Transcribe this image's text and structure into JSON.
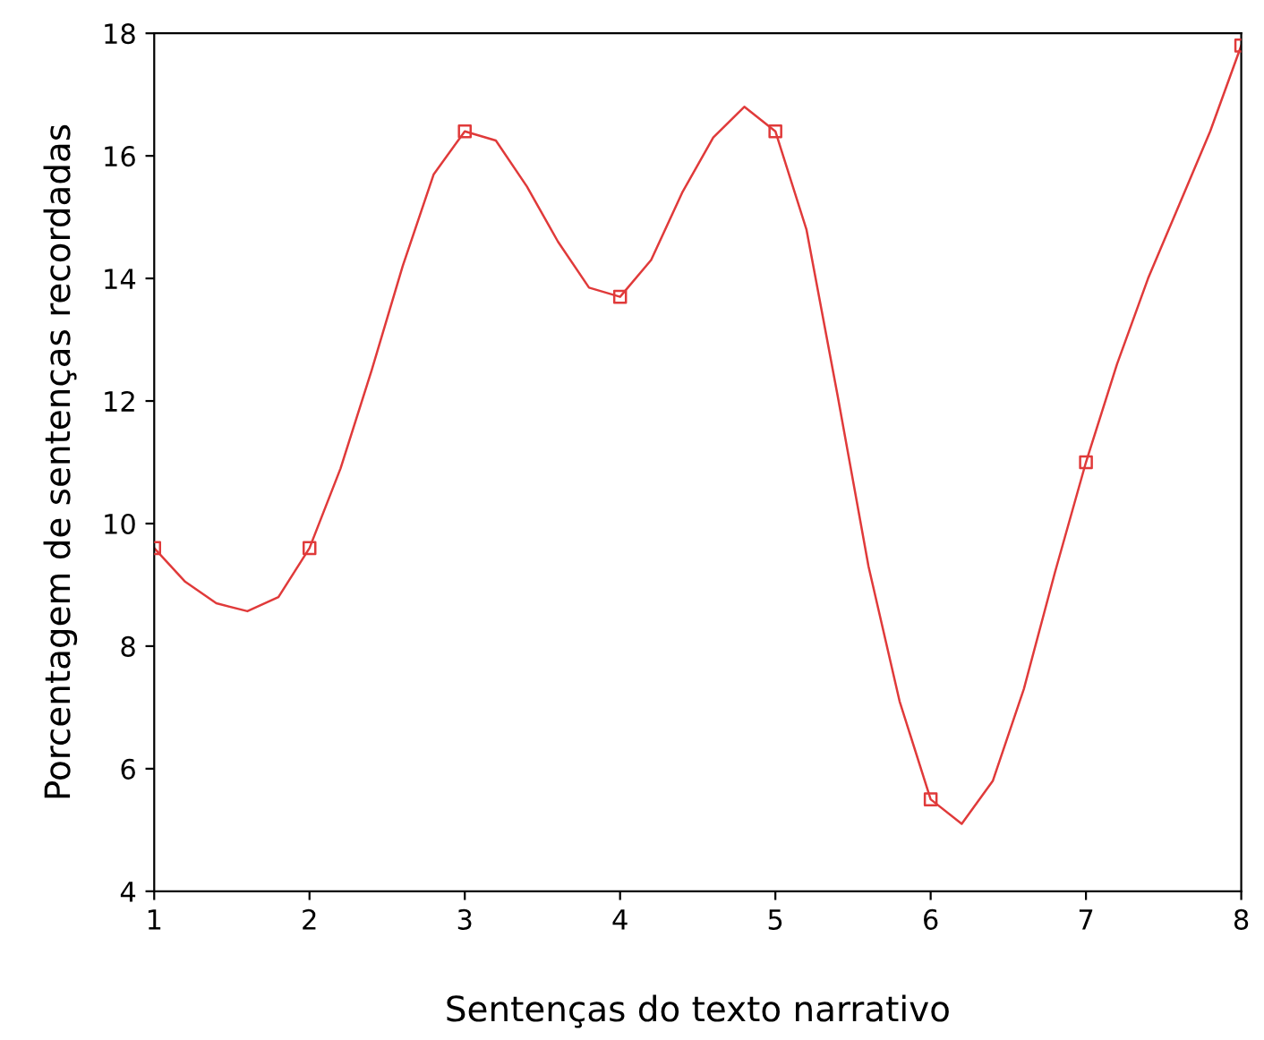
{
  "chart_data": {
    "type": "line",
    "xlabel": "Sentenças do texto narrativo",
    "ylabel": "Porcentagem de sentenças recordadas",
    "series": [
      {
        "color": "#e03a3a",
        "marker": "none",
        "x": [
          1,
          1.2,
          1.4,
          1.6,
          1.8,
          2,
          2.2,
          2.4,
          2.6,
          2.8,
          3,
          3.2,
          3.4,
          3.6,
          3.8,
          4,
          4.2,
          4.4,
          4.6,
          4.8,
          5,
          5.2,
          5.4,
          5.6,
          5.8,
          6,
          6.2,
          6.4,
          6.6,
          6.8,
          7,
          7.2,
          7.4,
          7.6,
          7.8,
          8
        ],
        "values": [
          9.6,
          9.05,
          8.7,
          8.57,
          8.8,
          9.6,
          10.9,
          12.5,
          14.2,
          15.7,
          16.4,
          16.25,
          15.5,
          14.6,
          13.85,
          13.7,
          14.3,
          15.4,
          16.3,
          16.8,
          16.4,
          14.8,
          12.1,
          9.3,
          7.1,
          5.5,
          5.1,
          5.8,
          7.3,
          9.2,
          11.0,
          12.6,
          14.0,
          15.2,
          16.4,
          17.8
        ]
      },
      {
        "type": "scatter",
        "color": "#e03a3a",
        "marker": "square",
        "x": [
          1,
          2,
          3,
          4,
          5,
          6,
          7,
          8
        ],
        "values": [
          9.6,
          9.6,
          16.4,
          13.7,
          16.4,
          5.5,
          11.0,
          17.8
        ]
      }
    ],
    "xlim": [
      1,
      8
    ],
    "xticks": [
      1,
      2,
      3,
      4,
      5,
      6,
      7,
      8
    ],
    "ylim": [
      4,
      18
    ],
    "yticks": [
      4,
      6,
      8,
      10,
      12,
      14,
      16,
      18
    ],
    "grid": false,
    "legend": false
  }
}
